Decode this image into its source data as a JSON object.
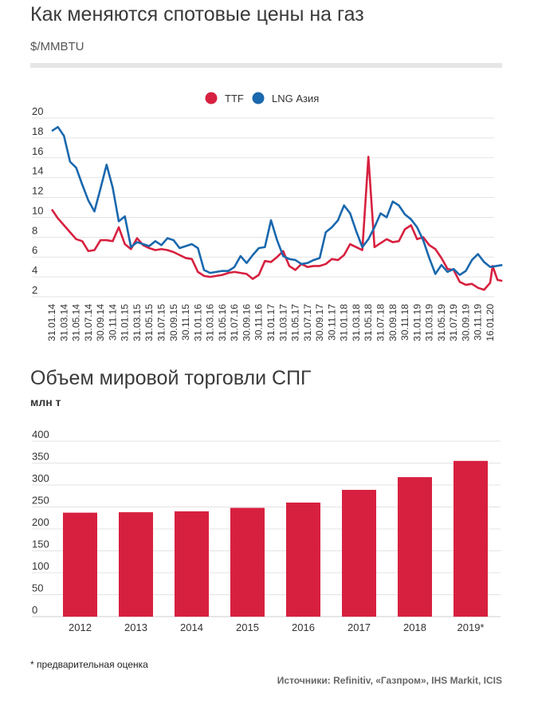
{
  "chart_data": [
    {
      "type": "line",
      "title": "Как меняются спотовые цены на газ",
      "ylabel": "$/MMBTU",
      "ylim": [
        2,
        20
      ],
      "yticks": [
        "2",
        "4",
        "6",
        "8",
        "10",
        "12",
        "14",
        "16",
        "18",
        "20"
      ],
      "legend_position": "top-center",
      "x_tick_labels": [
        "31.01.14",
        "31.03.14",
        "31.05.14",
        "31.07.14",
        "30.09.14",
        "30.11.14",
        "31.01.15",
        "31.03.15",
        "31.05.15",
        "31.07.15",
        "30.09.15",
        "30.11.15",
        "31.01.16",
        "31.03.16",
        "31.05.16",
        "31.07.16",
        "30.09.16",
        "30.11.16",
        "31.01.17",
        "31.03.17",
        "31.05.17",
        "31.07.17",
        "30.09.17",
        "30.11.17",
        "31.01.18",
        "31.03.18",
        "31.05.18",
        "31.07.18",
        "30.09.18",
        "30.11.18",
        "31.01.19",
        "31.03.19",
        "31.05.19",
        "31.07.19",
        "30.09.19",
        "30.11.19",
        "16.01.20"
      ],
      "series": [
        {
          "name": "TTF",
          "color": "#d7203f",
          "values": [
            10.8,
            9.9,
            9.2,
            8.5,
            7.8,
            7.6,
            6.6,
            6.7,
            7.7,
            7.7,
            7.6,
            9.0,
            7.3,
            6.8,
            7.9,
            7.2,
            6.9,
            6.7,
            6.8,
            6.7,
            6.5,
            6.2,
            5.9,
            5.8,
            4.5,
            4.1,
            4.0,
            4.1,
            4.2,
            4.4,
            4.5,
            4.4,
            4.3,
            3.8,
            4.2,
            5.6,
            5.5,
            6.0,
            6.6,
            5.1,
            4.7,
            5.3,
            5.0,
            5.1,
            5.1,
            5.3,
            5.8,
            5.7,
            6.2,
            7.3,
            7.0,
            6.7,
            16.1,
            7.0,
            7.4,
            7.8,
            7.5,
            7.6,
            8.8,
            9.2,
            7.8,
            8.0,
            7.2,
            6.8,
            5.9,
            4.8,
            4.7,
            3.5,
            3.2,
            3.3,
            2.9,
            2.7,
            3.4,
            5.1,
            3.7,
            3.6
          ],
          "x_index": [
            0,
            0.5,
            1,
            1.5,
            2,
            2.5,
            3,
            3.5,
            4,
            4.5,
            5,
            5.5,
            6,
            6.5,
            7,
            7.5,
            8,
            8.5,
            9,
            9.5,
            10,
            10.5,
            11,
            11.5,
            12,
            12.5,
            13,
            13.5,
            14,
            14.5,
            15,
            15.5,
            16,
            16.5,
            17,
            17.5,
            18,
            18.5,
            19,
            19.5,
            20,
            20.5,
            21,
            21.5,
            22,
            22.5,
            23,
            23.5,
            24,
            24.5,
            25,
            25.5,
            26,
            26.5,
            27,
            27.5,
            28,
            28.5,
            29,
            29.5,
            30,
            30.5,
            31,
            31.5,
            32,
            32.5,
            33,
            33.5,
            34,
            34.5,
            35,
            35.5,
            36,
            36.2,
            36.6,
            37
          ]
        },
        {
          "name": "LNG Азия",
          "color": "#1a68ad",
          "values": [
            18.7,
            19.1,
            18.2,
            15.6,
            15.0,
            13.3,
            11.7,
            10.6,
            12.9,
            15.3,
            13.0,
            9.6,
            10.1,
            7.0,
            7.5,
            7.3,
            7.1,
            7.6,
            7.2,
            7.9,
            7.7,
            6.9,
            7.1,
            7.3,
            6.9,
            4.7,
            4.4,
            4.5,
            4.6,
            4.6,
            5.0,
            6.1,
            5.4,
            6.2,
            6.9,
            7.0,
            9.7,
            7.7,
            6.1,
            5.8,
            5.7,
            5.3,
            5.4,
            5.7,
            5.9,
            8.5,
            9.0,
            9.7,
            11.2,
            10.4,
            8.6,
            7.0,
            7.8,
            9.0,
            10.4,
            10.0,
            11.6,
            11.2,
            10.3,
            9.8,
            9.0,
            7.7,
            5.9,
            4.3,
            5.2,
            4.5,
            4.8,
            4.2,
            4.6,
            5.7,
            6.3,
            5.5,
            5.0,
            5.2
          ],
          "x_index": [
            0,
            0.5,
            1,
            1.5,
            2,
            2.5,
            3,
            3.5,
            4,
            4.5,
            5,
            5.5,
            6,
            6.5,
            7,
            7.5,
            8,
            8.5,
            9,
            9.5,
            10,
            10.5,
            11,
            11.5,
            12,
            12.5,
            13,
            13.5,
            14,
            14.5,
            15,
            15.5,
            16,
            16.5,
            17,
            17.5,
            18,
            18.5,
            19,
            19.5,
            20,
            20.5,
            21,
            21.5,
            22,
            22.5,
            23,
            23.5,
            24,
            24.5,
            25,
            25.5,
            26,
            26.5,
            27,
            27.5,
            28,
            28.5,
            29,
            29.5,
            30,
            30.5,
            31,
            31.5,
            32,
            32.5,
            33,
            33.5,
            34,
            34.5,
            35,
            35.5,
            36,
            37
          ]
        }
      ]
    },
    {
      "type": "bar",
      "title": "Объем мировой торговли СПГ",
      "ylabel": "млн т",
      "ylim": [
        0,
        400
      ],
      "yticks": [
        "0",
        "50",
        "100",
        "150",
        "200",
        "250",
        "300",
        "350",
        "400"
      ],
      "categories": [
        "2012",
        "2013",
        "2014",
        "2015",
        "2016",
        "2017",
        "2018",
        "2019*"
      ],
      "values": [
        237,
        238,
        240,
        248,
        260,
        289,
        318,
        355
      ],
      "color": "#d7203f"
    }
  ],
  "footnote": "* предварительная оценка",
  "source": "Источники: Refinitiv, «Газпром», IHS Markit, ICIS"
}
